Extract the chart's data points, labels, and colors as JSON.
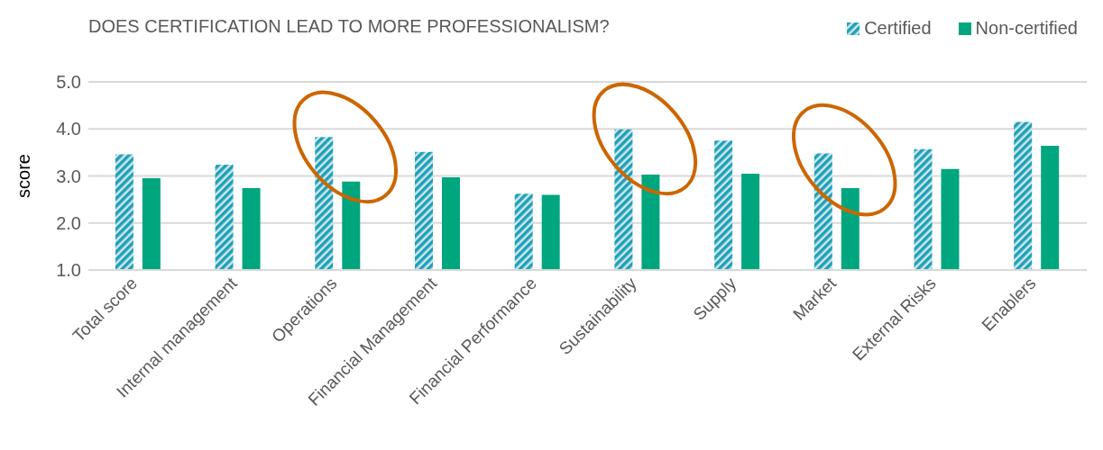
{
  "chart_data": {
    "type": "bar",
    "title": "DOES CERTIFICATION LEAD TO MORE PROFESSIONALISM?",
    "ylabel": "score",
    "categories": [
      "Total score",
      "Internal management",
      "Operations",
      "Financial Management",
      "Financial Performance",
      "Sustainability",
      "Supply",
      "Market",
      "External Risks",
      "Enablers"
    ],
    "series": [
      {
        "name": "Certified",
        "color": "#1fa0b8",
        "values": [
          3.46,
          3.24,
          3.83,
          3.51,
          2.62,
          3.99,
          3.75,
          3.48,
          3.57,
          4.15
        ]
      },
      {
        "name": "Non-certified",
        "color": "#00a67e",
        "values": [
          2.95,
          2.74,
          2.88,
          2.97,
          2.6,
          3.03,
          3.05,
          2.74,
          3.15,
          3.64
        ]
      }
    ],
    "ylim": [
      1,
      5
    ],
    "yticks": [
      {
        "value": 1,
        "label": "1.0"
      },
      {
        "value": 2,
        "label": "2.0"
      },
      {
        "value": 3,
        "label": "3.0"
      },
      {
        "value": 4,
        "label": "4.0"
      },
      {
        "value": 5,
        "label": "5.0"
      }
    ],
    "grid": "y",
    "legend": "top right"
  }
}
